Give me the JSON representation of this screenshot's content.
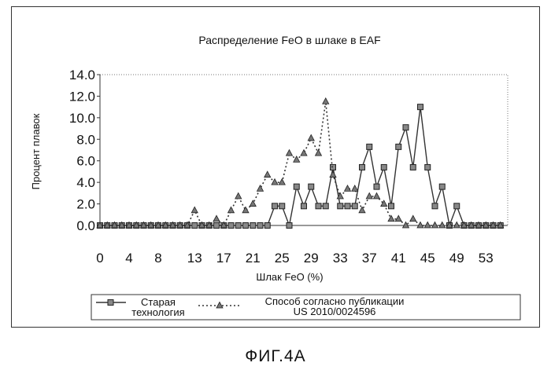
{
  "figure_label": "ФИГ.4A",
  "chart_data": {
    "type": "line",
    "title": "Распределение FeO в шлаке в EAF",
    "xlabel": "Шлак FeO (%)",
    "ylabel": "Процент плавок",
    "ylim": [
      0,
      14
    ],
    "yticks": [
      "0.0",
      "2.0",
      "4.0",
      "6.0",
      "8.0",
      "10.0",
      "12.0",
      "14.0"
    ],
    "xlim": [
      0,
      56
    ],
    "xticks": [
      "0",
      "4",
      "8",
      "13",
      "17",
      "21",
      "25",
      "29",
      "33",
      "37",
      "41",
      "45",
      "49",
      "53"
    ],
    "xtick_values": [
      0,
      4,
      8,
      13,
      17,
      21,
      25,
      29,
      33,
      37,
      41,
      45,
      49,
      53
    ],
    "grid": false,
    "legend": "bottom",
    "x": [
      0,
      1,
      2,
      3,
      4,
      5,
      6,
      7,
      8,
      9,
      10,
      11,
      12,
      13,
      14,
      15,
      16,
      17,
      18,
      19,
      20,
      21,
      22,
      23,
      24,
      25,
      26,
      27,
      28,
      29,
      30,
      31,
      32,
      33,
      34,
      35,
      36,
      37,
      38,
      39,
      40,
      41,
      42,
      43,
      44,
      45,
      46,
      47,
      48,
      49,
      50,
      51,
      52,
      53,
      54,
      55
    ],
    "series": [
      {
        "name": "Старая технология",
        "color": "#333333",
        "line_style": "solid",
        "marker": "square",
        "values": [
          0,
          0,
          0,
          0,
          0,
          0,
          0,
          0,
          0,
          0,
          0,
          0,
          0,
          0,
          0,
          0,
          0,
          0,
          0,
          0,
          0,
          0,
          0,
          0,
          1.8,
          1.8,
          0,
          3.6,
          1.8,
          3.6,
          1.8,
          1.8,
          5.4,
          1.8,
          1.8,
          1.8,
          5.4,
          7.3,
          3.6,
          5.4,
          1.8,
          7.3,
          9.1,
          5.4,
          11,
          5.4,
          1.8,
          3.6,
          0,
          1.8,
          0,
          0,
          0,
          0,
          0,
          0
        ]
      },
      {
        "name": "Способ согласно публикации US 2010/0024596",
        "color": "#333333",
        "line_style": "dashed",
        "marker": "triangle",
        "values": [
          0,
          0,
          0,
          0,
          0,
          0,
          0,
          0,
          0,
          0,
          0,
          0,
          0,
          1.4,
          0,
          0,
          0.6,
          0,
          1.4,
          2.7,
          1.4,
          2,
          3.4,
          4.7,
          4,
          4,
          6.7,
          6.1,
          6.7,
          8.1,
          6.7,
          11.5,
          4.7,
          2.7,
          3.4,
          3.4,
          1.4,
          2.7,
          2.7,
          2,
          0.6,
          0.6,
          0,
          0.6,
          0,
          0,
          0,
          0,
          0,
          0,
          0,
          0,
          0,
          0,
          0,
          0
        ]
      }
    ]
  }
}
